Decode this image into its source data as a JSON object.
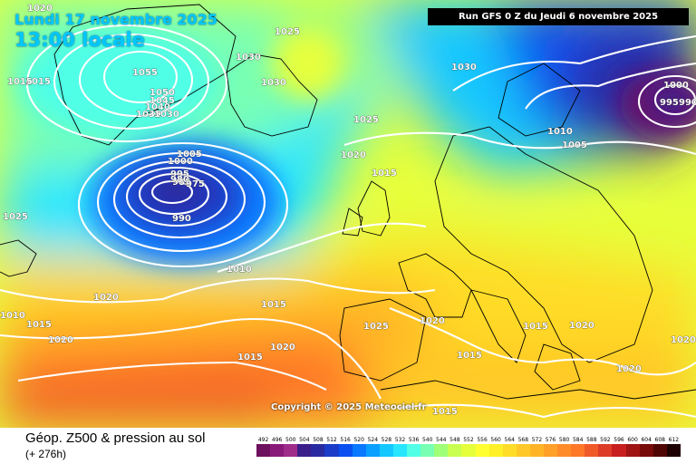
{
  "header": {
    "date": "Lundi 17 novembre 2025",
    "time": "13:00 locale",
    "run": "Run GFS 0 Z du Jeudi 6 novembre 2025"
  },
  "copyright": "Copyright © 2025 Meteociel.fr",
  "footer": {
    "title": "Géop. Z500 & pression au sol",
    "subtitle": "(+ 276h)"
  },
  "scale": {
    "labels": [
      "492",
      "496",
      "500",
      "504",
      "508",
      "512",
      "516",
      "520",
      "524",
      "528",
      "532",
      "536",
      "540",
      "544",
      "548",
      "552",
      "556",
      "560",
      "564",
      "568",
      "572",
      "576",
      "580",
      "584",
      "588",
      "592",
      "596",
      "600",
      "604",
      "608",
      "612"
    ],
    "colors": [
      "#6e1060",
      "#8a1a7a",
      "#a02c8a",
      "#3c1e8a",
      "#2a2aa0",
      "#1a3cc8",
      "#0a50f0",
      "#0a78ff",
      "#0aa0ff",
      "#14c8ff",
      "#28e6ff",
      "#50ffe6",
      "#78ffb4",
      "#a0ff78",
      "#c8ff50",
      "#e6ff3c",
      "#ffff32",
      "#fff028",
      "#ffdc28",
      "#ffc828",
      "#ffb428",
      "#ffa028",
      "#ff8c28",
      "#ff7828",
      "#f05a28",
      "#dc3c28",
      "#c81e1e",
      "#a01414",
      "#780a0a",
      "#500505",
      "#1e0000"
    ]
  },
  "isobar_labels": [
    "1020",
    "1025",
    "1030",
    "1030",
    "1055",
    "1050",
    "1045",
    "1040",
    "1035",
    "1030",
    "1015",
    "1025",
    "1020",
    "1005",
    "1000",
    "995",
    "990",
    "985",
    "980",
    "975",
    "1015",
    "1030",
    "1000",
    "995",
    "990",
    "1010",
    "1005",
    "1025",
    "1010",
    "1020",
    "1015",
    "1020",
    "1025",
    "1015",
    "1020",
    "1010",
    "1015",
    "1015",
    "1020",
    "1015",
    "1015",
    "1020",
    "1020",
    "1020",
    "1015"
  ]
}
